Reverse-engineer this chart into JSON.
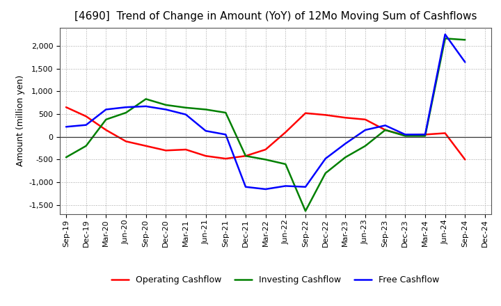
{
  "title": "[4690]  Trend of Change in Amount (YoY) of 12Mo Moving Sum of Cashflows",
  "ylabel": "Amount (million yen)",
  "xlabels": [
    "Sep-19",
    "Dec-19",
    "Mar-20",
    "Jun-20",
    "Sep-20",
    "Dec-20",
    "Mar-21",
    "Jun-21",
    "Sep-21",
    "Dec-21",
    "Mar-22",
    "Jun-22",
    "Sep-22",
    "Dec-22",
    "Mar-23",
    "Jun-23",
    "Sep-23",
    "Dec-23",
    "Mar-24",
    "Jun-24",
    "Sep-24",
    "Dec-24"
  ],
  "operating_cashflow": [
    650,
    450,
    150,
    -100,
    -200,
    -300,
    -280,
    -420,
    -480,
    -420,
    -280,
    100,
    520,
    480,
    420,
    380,
    150,
    30,
    50,
    80,
    -500,
    null
  ],
  "investing_cashflow": [
    -450,
    -200,
    380,
    530,
    830,
    700,
    640,
    600,
    530,
    -420,
    -500,
    -600,
    -1630,
    -800,
    -450,
    -200,
    150,
    20,
    20,
    2160,
    2130,
    null
  ],
  "free_cashflow": [
    220,
    260,
    600,
    650,
    670,
    600,
    490,
    130,
    50,
    -1100,
    -1150,
    -1080,
    -1100,
    -480,
    -150,
    150,
    250,
    50,
    50,
    2250,
    1640,
    null
  ],
  "operating_color": "#ff0000",
  "investing_color": "#008000",
  "free_color": "#0000ff",
  "ylim": [
    -1700,
    2400
  ],
  "yticks": [
    -1500,
    -1000,
    -500,
    0,
    500,
    1000,
    1500,
    2000
  ],
  "background_color": "#ffffff",
  "plot_bg_color": "#ffffff",
  "grid_color": "#999999",
  "title_fontsize": 11,
  "axis_fontsize": 8,
  "legend_labels": [
    "Operating Cashflow",
    "Investing Cashflow",
    "Free Cashflow"
  ]
}
